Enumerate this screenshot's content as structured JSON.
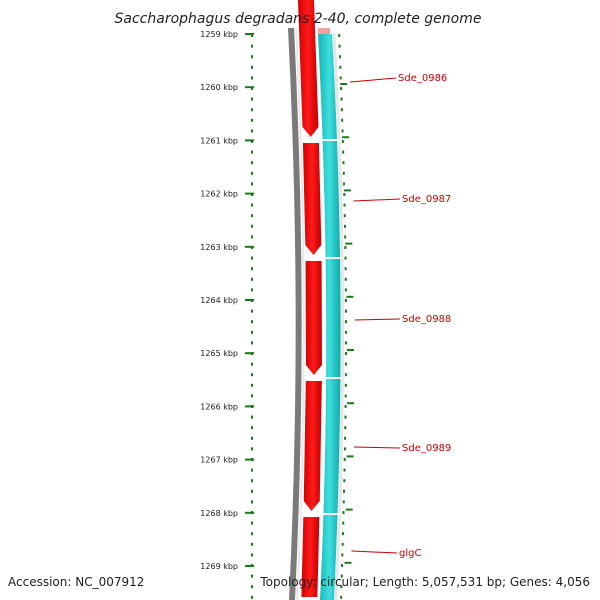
{
  "title": "Saccharophagus degradans 2-40, complete genome",
  "footer": {
    "accession": "Accession: NC_007912",
    "topology": "Topology: circular; Length: 5,057,531 bp; Genes: 4,056"
  },
  "ruler": {
    "ticks": [
      "1259 kbp",
      "1260 kbp",
      "1261 kbp",
      "1262 kbp",
      "1263 kbp",
      "1264 kbp",
      "1265 kbp",
      "1266 kbp",
      "1267 kbp",
      "1268 kbp",
      "1269 kbp"
    ]
  },
  "genes": [
    {
      "label": "Sde_0986"
    },
    {
      "label": "Sde_0987"
    },
    {
      "label": "Sde_0988"
    },
    {
      "label": "Sde_0989"
    },
    {
      "label": "glgC"
    }
  ],
  "colors": {
    "tick": "#1a7a1a",
    "forward_strand": "#ff0000",
    "reverse_strand": "#1cc8c8",
    "backbone": "#7a7a7a",
    "label": "#cc0000"
  }
}
